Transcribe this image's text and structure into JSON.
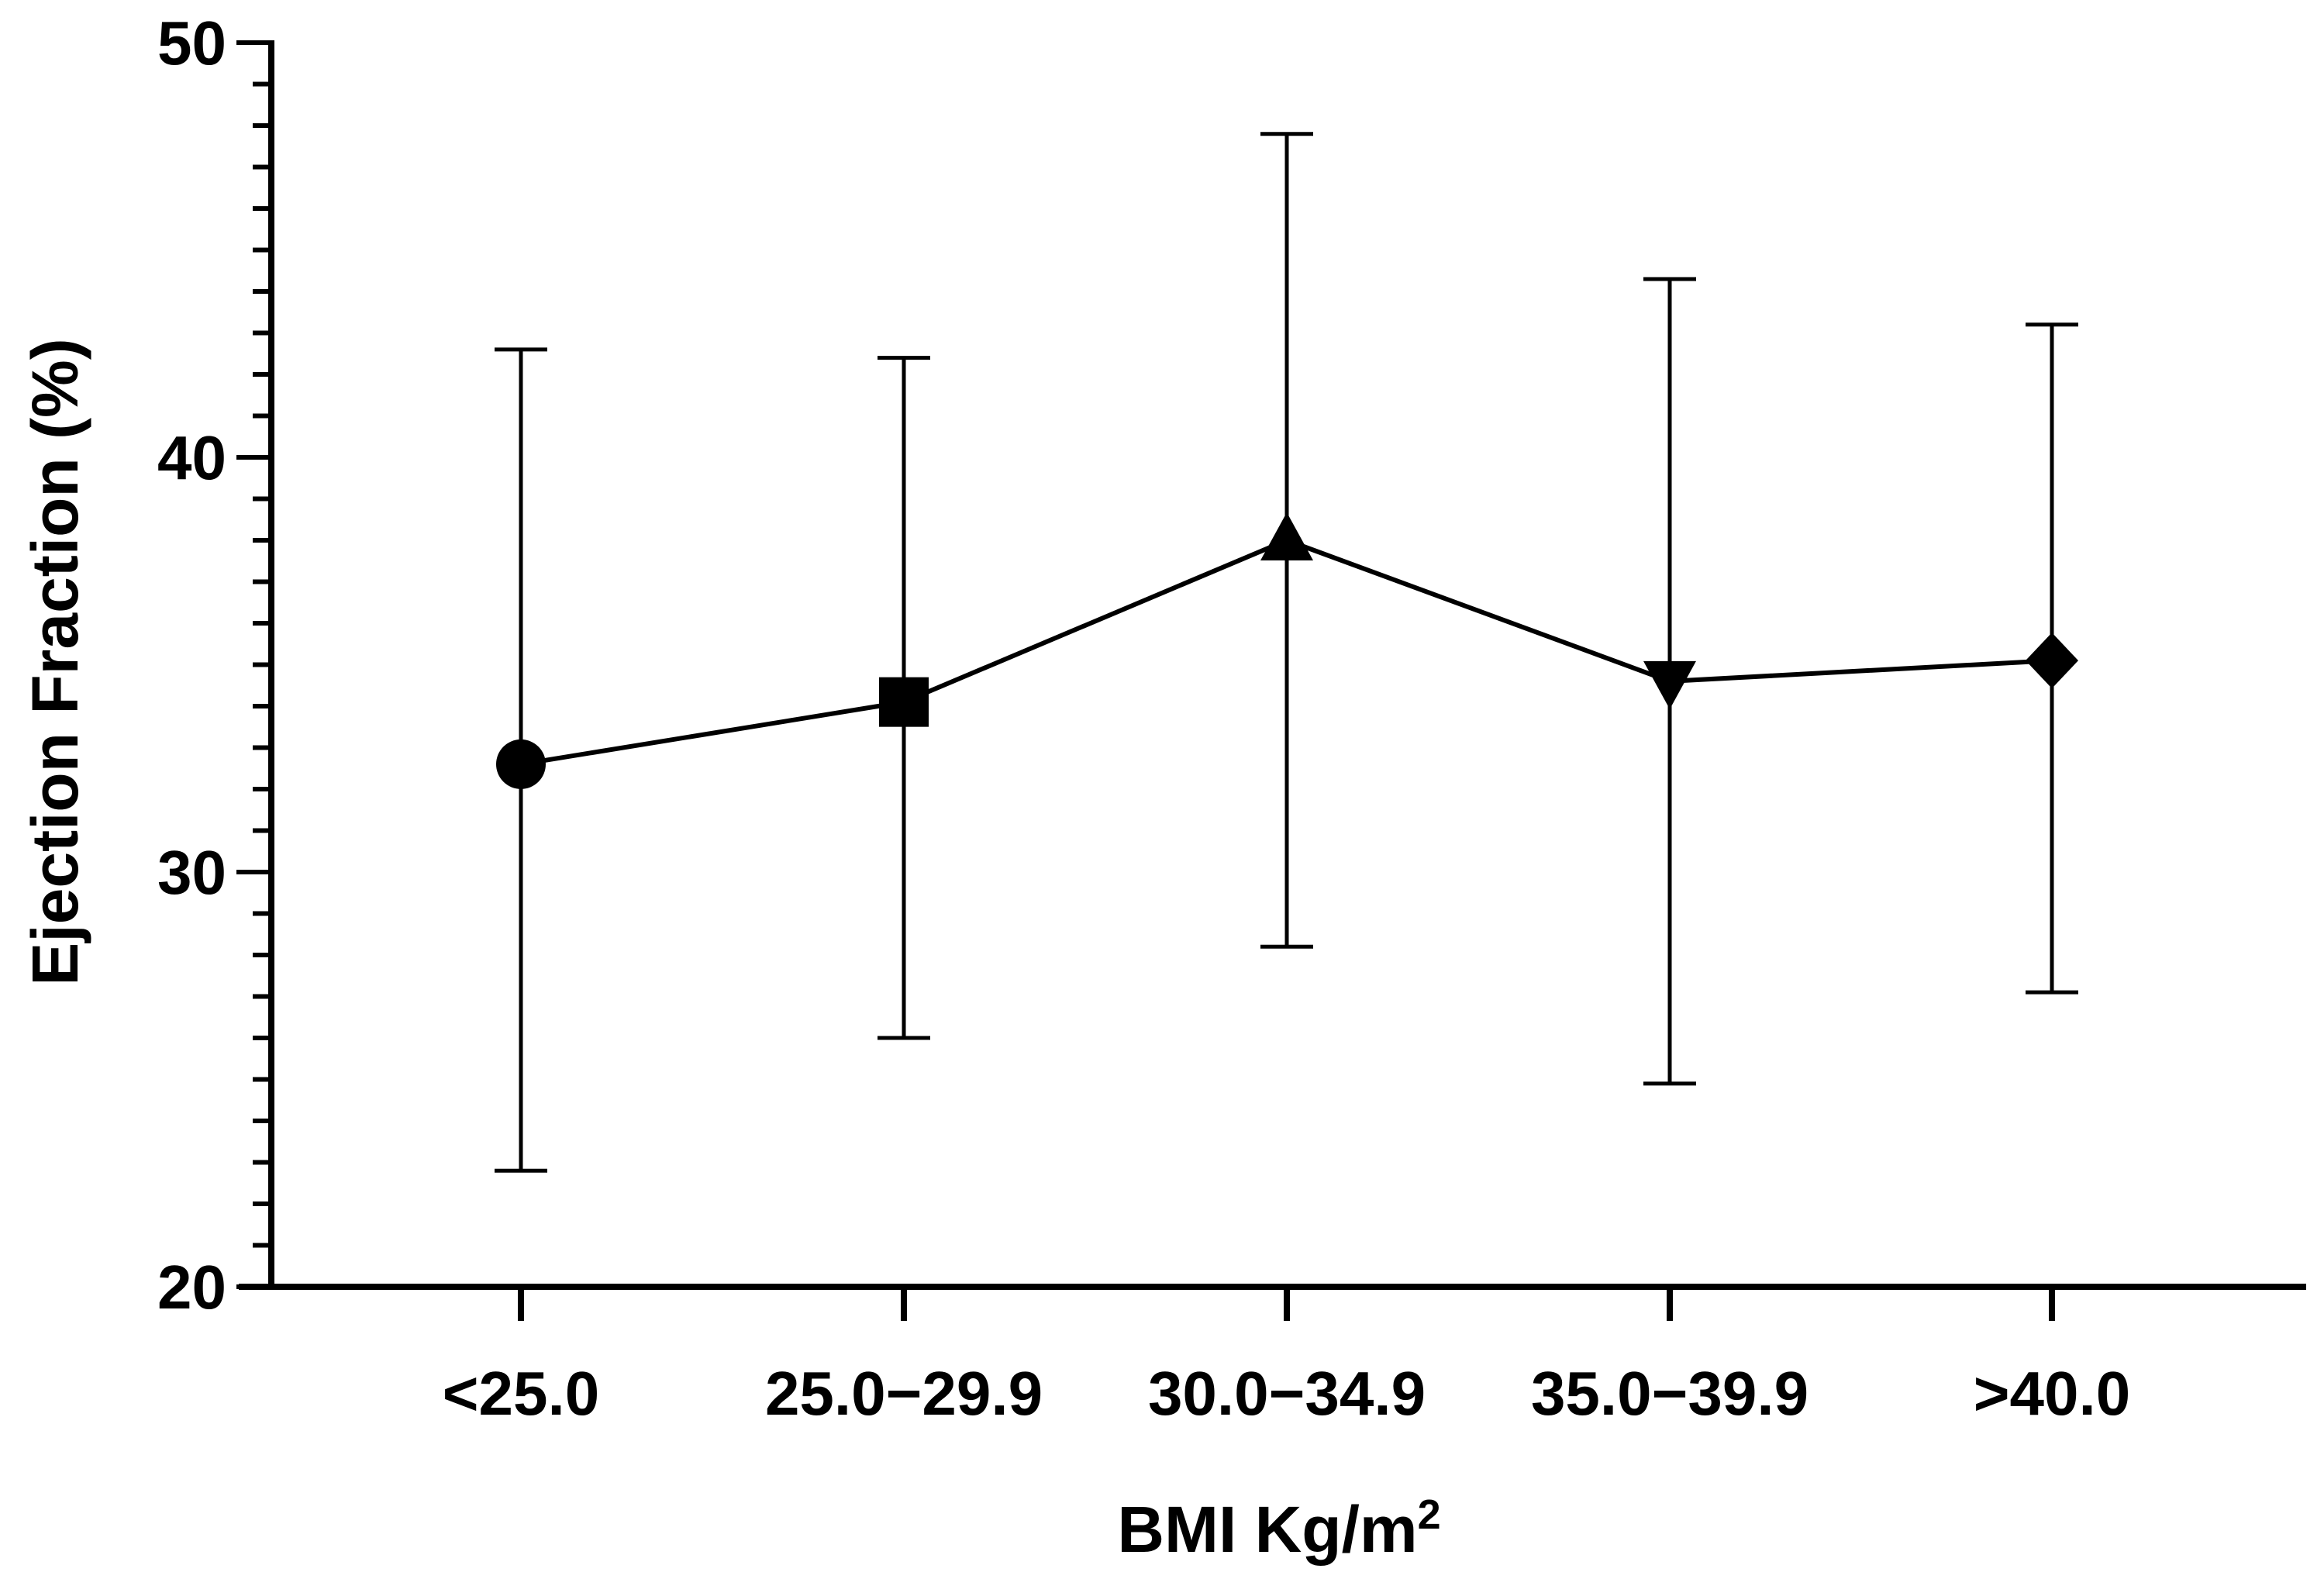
{
  "chart_data": {
    "type": "line",
    "title": "",
    "xlabel": "BMI Kg/m",
    "xlabel_superscript": "2",
    "ylabel": "Ejection Fraction (%)",
    "ylim": [
      20,
      50
    ],
    "yticks": [
      20,
      30,
      40,
      50
    ],
    "y_minor_step": 1,
    "grid": false,
    "legend": "none",
    "categories": [
      "<25.0",
      "25.0−29.9",
      "30.0−34.9",
      "35.0−39.9",
      ">40.0"
    ],
    "series": [
      {
        "values": [
          32.6,
          34.1,
          38.0,
          34.6,
          35.1
        ],
        "error_lower": [
          22.8,
          26.0,
          28.2,
          24.9,
          27.1
        ],
        "error_upper": [
          42.6,
          42.4,
          47.8,
          44.3,
          43.2
        ],
        "markers": [
          "circle",
          "square",
          "triangle-up",
          "triangle-down",
          "diamond"
        ]
      }
    ],
    "colors": {
      "line": "#000000",
      "marker": "#000000"
    }
  }
}
